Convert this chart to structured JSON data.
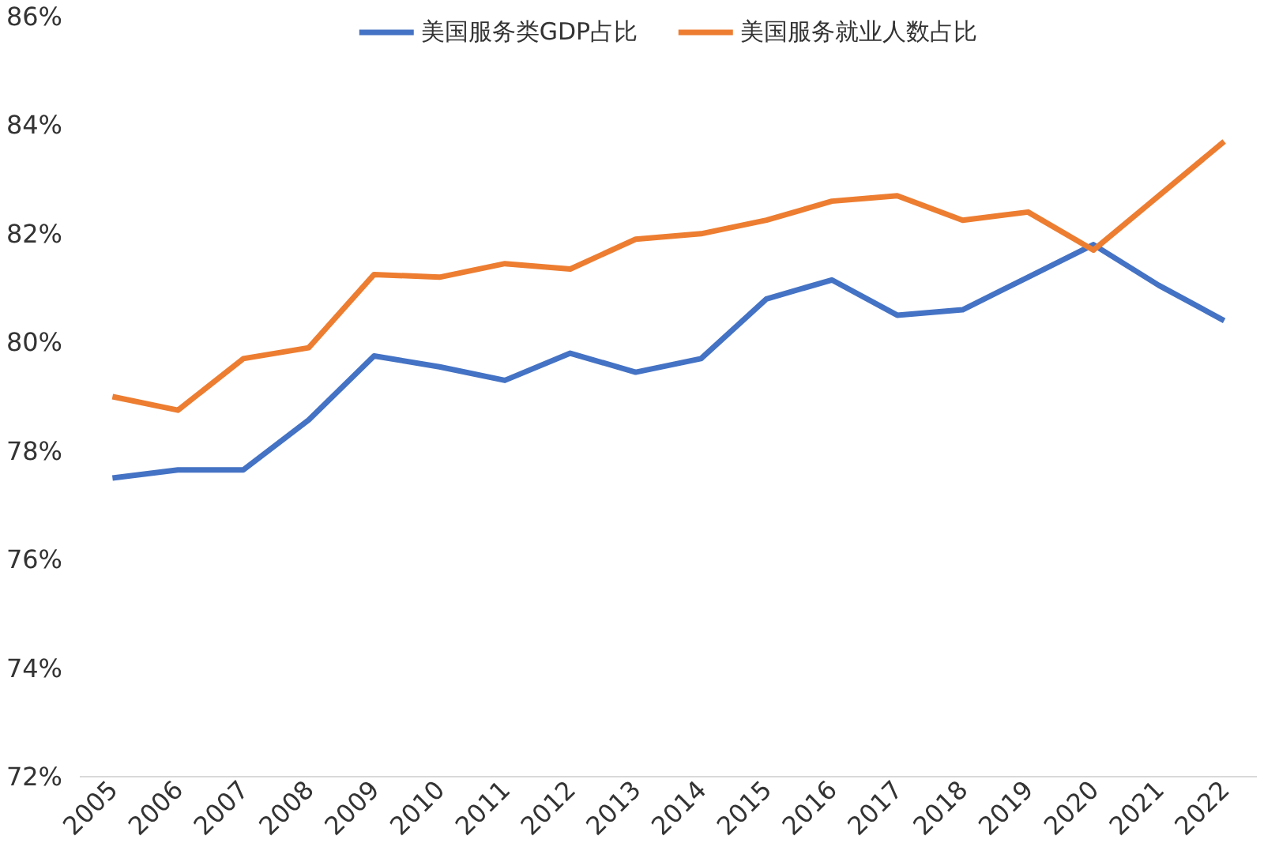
{
  "chart_data": {
    "type": "line",
    "categories": [
      "2005",
      "2006",
      "2007",
      "2008",
      "2009",
      "2010",
      "2011",
      "2012",
      "2013",
      "2014",
      "2015",
      "2016",
      "2017",
      "2018",
      "2019",
      "2020",
      "2021",
      "2022"
    ],
    "series": [
      {
        "name": "美国服务类GDP占比",
        "color": "#4472c4",
        "values": [
          77.5,
          77.65,
          77.65,
          78.57,
          79.75,
          79.55,
          79.3,
          79.8,
          79.45,
          79.7,
          80.8,
          81.15,
          80.5,
          80.6,
          81.2,
          81.8,
          81.05,
          80.4
        ]
      },
      {
        "name": "美国服务就业人数占比",
        "color": "#ed7d31",
        "values": [
          79.0,
          78.75,
          79.7,
          79.9,
          81.25,
          81.2,
          81.45,
          81.35,
          81.9,
          82.0,
          82.25,
          82.6,
          82.7,
          82.25,
          82.4,
          81.7,
          82.7,
          83.7
        ]
      }
    ],
    "ylim": [
      72,
      86
    ],
    "yticks": [
      {
        "value": 72,
        "label": "72%"
      },
      {
        "value": 74,
        "label": "74%"
      },
      {
        "value": 76,
        "label": "76%"
      },
      {
        "value": 78,
        "label": "78%"
      },
      {
        "value": 80,
        "label": "80%"
      },
      {
        "value": 82,
        "label": "82%"
      },
      {
        "value": 84,
        "label": "84%"
      },
      {
        "value": 86,
        "label": "86%"
      }
    ],
    "grid": false,
    "legend": "top",
    "marker": "none",
    "line_style": "solid"
  }
}
